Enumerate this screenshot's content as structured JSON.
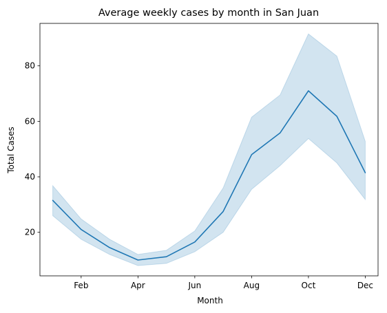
{
  "chart_data": {
    "type": "line",
    "title": "Average weekly cases by month in San Juan",
    "xlabel": "Month",
    "ylabel": "Total Cases",
    "x": [
      1,
      2,
      3,
      4,
      5,
      6,
      7,
      8,
      9,
      10,
      11,
      12
    ],
    "x_ticks": [
      {
        "x": 2,
        "label": "Feb"
      },
      {
        "x": 4,
        "label": "Apr"
      },
      {
        "x": 6,
        "label": "Jun"
      },
      {
        "x": 8,
        "label": "Aug"
      },
      {
        "x": 10,
        "label": "Oct"
      },
      {
        "x": 12,
        "label": "Dec"
      }
    ],
    "y_ticks": [
      20,
      40,
      60,
      80
    ],
    "xlim": [
      0.55,
      12.45
    ],
    "ylim": [
      4.3,
      95.3
    ],
    "grid": false,
    "series": [
      {
        "values": [
          31.5,
          21.0,
          14.5,
          10.0,
          11.2,
          16.5,
          27.5,
          48.0,
          55.8,
          71.0,
          61.8,
          41.5
        ],
        "ci_low": [
          26.0,
          17.5,
          12.0,
          8.0,
          8.8,
          13.0,
          20.0,
          35.5,
          44.0,
          53.8,
          45.0,
          31.8
        ],
        "ci_high": [
          36.8,
          24.8,
          17.5,
          12.0,
          13.5,
          20.5,
          36.0,
          61.5,
          69.5,
          91.5,
          83.5,
          52.8
        ],
        "color": "#1f77b4",
        "band_color": "#1f77b4"
      }
    ]
  }
}
